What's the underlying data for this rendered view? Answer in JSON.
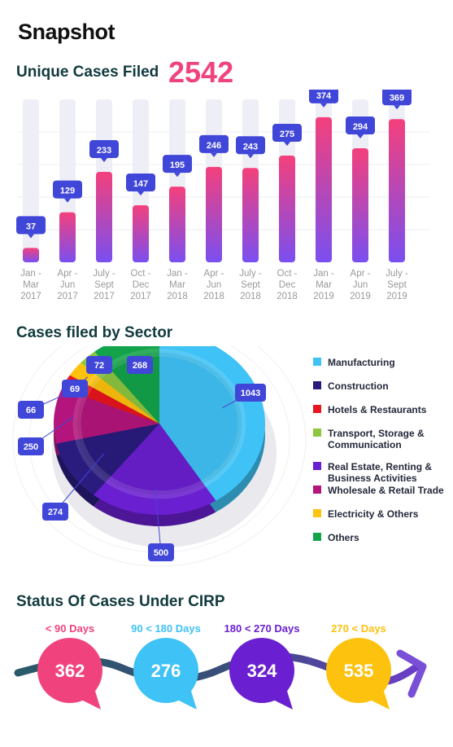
{
  "header": {
    "title": "Snapshot"
  },
  "unique_cases": {
    "title": "Unique Cases Filed",
    "total": "2542"
  },
  "sector": {
    "title": "Cases filed by Sector"
  },
  "status": {
    "title": "Status Of Cases Under CIRP",
    "items": [
      {
        "range": "< 90 Days",
        "value": "362",
        "color": "#f0437e"
      },
      {
        "range": "90 < 180 Days",
        "value": "276",
        "color": "#3fc2f5"
      },
      {
        "range": "180 < 270 Days",
        "value": "324",
        "color": "#6a1fd0"
      },
      {
        "range": "270 < Days",
        "value": "535",
        "color": "#fdc20d"
      }
    ]
  },
  "chart_data": [
    {
      "type": "bar",
      "title": "Unique Cases Filed",
      "categories": [
        [
          "Jan -",
          "Mar",
          "2017"
        ],
        [
          "Apr -",
          "Jun",
          "2017"
        ],
        [
          "July -",
          "Sept",
          "2017"
        ],
        [
          "Oct -",
          "Dec",
          "2017"
        ],
        [
          "Jan -",
          "Mar",
          "2018"
        ],
        [
          "Apr -",
          "Jun",
          "2018"
        ],
        [
          "July -",
          "Sept",
          "2018"
        ],
        [
          "Oct -",
          "Dec",
          "2018"
        ],
        [
          "Jan -",
          "Mar",
          "2019"
        ],
        [
          "Apr -",
          "Jun",
          "2019"
        ],
        [
          "July -",
          "Sept",
          "2019"
        ]
      ],
      "values": [
        37,
        129,
        233,
        147,
        195,
        246,
        243,
        275,
        374,
        294,
        369
      ],
      "ylim": [
        0,
        420
      ],
      "grid": true,
      "colors": {
        "top": "#f4407c",
        "bottom": "#7a4ff0",
        "track": "#eeeef6",
        "label": "#4046d8"
      }
    },
    {
      "type": "pie",
      "title": "Cases filed by Sector",
      "legend": "right",
      "slices": [
        {
          "label": "Manufacturing",
          "value": 1043,
          "color": "#3fc2f5"
        },
        {
          "label": "Real Estate, Renting & Business Activities",
          "value": 500,
          "color": "#6a1fd0"
        },
        {
          "label": "Construction",
          "value": 274,
          "color": "#2a1c7e"
        },
        {
          "label": "Wholesale & Retail Trade",
          "value": 250,
          "color": "#b3157c"
        },
        {
          "label": "Hotels & Restaurants",
          "value": 66,
          "color": "#e8141e"
        },
        {
          "label": "Electricity & Others",
          "value": 69,
          "color": "#fdc20d"
        },
        {
          "label": "Transport, Storage & Communication",
          "value": 72,
          "color": "#8dc63f"
        },
        {
          "label": "Others",
          "value": 268,
          "color": "#13a34a"
        }
      ],
      "legend_order": [
        {
          "label": "Manufacturing",
          "color": "#3fc2f5"
        },
        {
          "label": "Construction",
          "color": "#2a1c7e"
        },
        {
          "label": "Hotels & Restaurants",
          "color": "#e8141e"
        },
        {
          "label": "Transport, Storage & Communication",
          "color": "#8dc63f"
        },
        {
          "label": "Real Estate, Renting & Business Activities",
          "color": "#6a1fd0"
        },
        {
          "label": "Wholesale & Retail Trade",
          "color": "#b3157c"
        },
        {
          "label": "Electricity & Others",
          "color": "#fdc20d"
        },
        {
          "label": "Others",
          "color": "#13a34a"
        }
      ]
    }
  ]
}
